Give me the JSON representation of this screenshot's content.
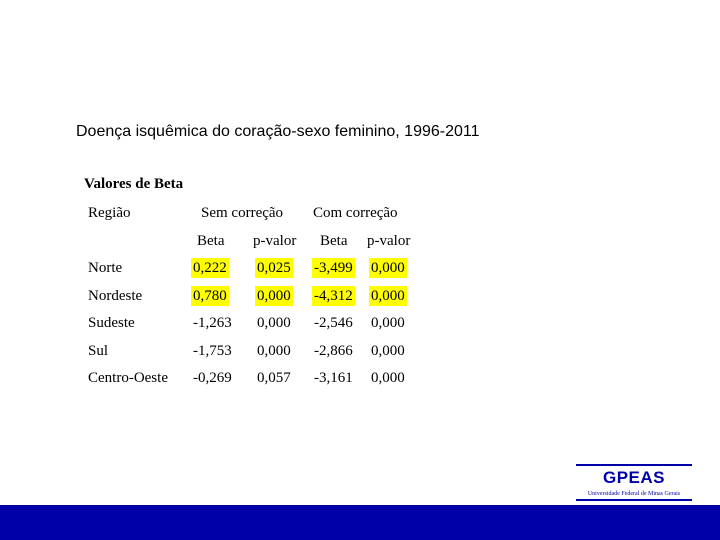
{
  "slide": {
    "title": "Doença isquêmica do coração-sexo feminino, 1996-2011"
  },
  "table": {
    "title": "Valores de Beta",
    "header_region": "Região",
    "group_without": "Sem correção",
    "group_with": "Com correção",
    "sub_beta_1": "Beta",
    "sub_p_1": "p-valor",
    "sub_beta_2": "Beta",
    "sub_p_2": "p-valor",
    "highlight_color": "#ffff00",
    "rows": [
      {
        "region": "Norte",
        "beta1": "0,222",
        "p1": "0,025",
        "beta2": "-3,499",
        "p2": "0,000",
        "highlighted": true
      },
      {
        "region": "Nordeste",
        "beta1": "0,780",
        "p1": "0,000",
        "beta2": "-4,312",
        "p2": "0,000",
        "highlighted": true
      },
      {
        "region": "Sudeste",
        "beta1": "-1,263",
        "p1": "0,000",
        "beta2": "-2,546",
        "p2": "0,000",
        "highlighted": false
      },
      {
        "region": "Sul",
        "beta1": "-1,753",
        "p1": "0,000",
        "beta2": "-2,866",
        "p2": "0,000",
        "highlighted": false
      },
      {
        "region": "Centro-Oeste",
        "beta1": "-0,269",
        "p1": "0,057",
        "beta2": "-3,161",
        "p2": "0,000",
        "highlighted": false
      }
    ]
  },
  "logo": {
    "name": "GPEAS",
    "subtitle": "Universidade Federal de Minas Gerais",
    "color": "#0000a8"
  },
  "footer": {
    "color": "#0000a8"
  }
}
